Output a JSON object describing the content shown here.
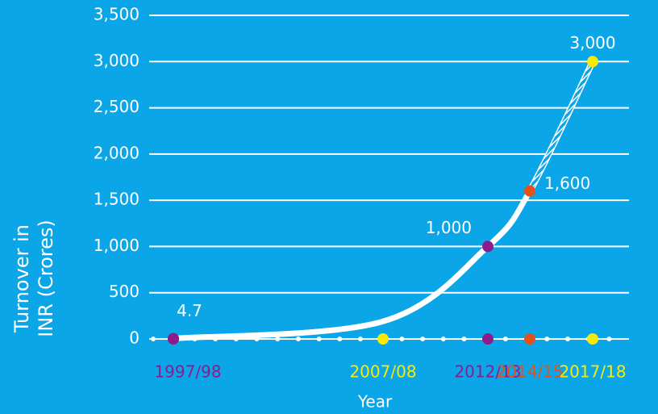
{
  "chart_data": {
    "type": "line",
    "ylabel": [
      "Turnover in",
      "INR (Crores)"
    ],
    "xlabel": "Year",
    "x": [
      1997,
      2007,
      2012,
      2014,
      2017
    ],
    "xlim": [
      1996,
      2019
    ],
    "xticks": [
      {
        "value": 1997,
        "label": "1997/98"
      },
      {
        "value": 2007,
        "label": "2007/08"
      },
      {
        "value": 2012,
        "label": "2012/13"
      },
      {
        "value": 2014,
        "label": "2014/15"
      },
      {
        "value": 2017,
        "label": "2017/18"
      }
    ],
    "series": [
      {
        "color": "#ffffff",
        "values": [
          4.7,
          190,
          1000,
          1600,
          3000
        ]
      }
    ],
    "value_labels": [
      "4.7",
      null,
      "1,000",
      "1,600",
      "3,000"
    ],
    "marker_colors": [
      "#8e1b8c",
      null,
      "#8e1b8c",
      "#e2531c",
      "#f7ea0a"
    ],
    "axis_dot_colors": [
      "#8e1b8c",
      "#f7ea0a",
      "#8e1b8c",
      "#e2531c",
      "#f7ea0a"
    ],
    "hatched_from_index": 3,
    "ylim": [
      0,
      3500
    ],
    "yticks": [
      0,
      {
        "value": 500,
        "label": "500"
      },
      {
        "value": 1000,
        "label": "1,000"
      },
      {
        "value": 1500,
        "label": "1,500"
      },
      {
        "value": 2000,
        "label": "2,000"
      },
      {
        "value": 2500,
        "label": "2,500"
      },
      {
        "value": 3000,
        "label": "3,000"
      },
      {
        "value": 3500,
        "label": "3,500"
      }
    ],
    "grid": true
  }
}
